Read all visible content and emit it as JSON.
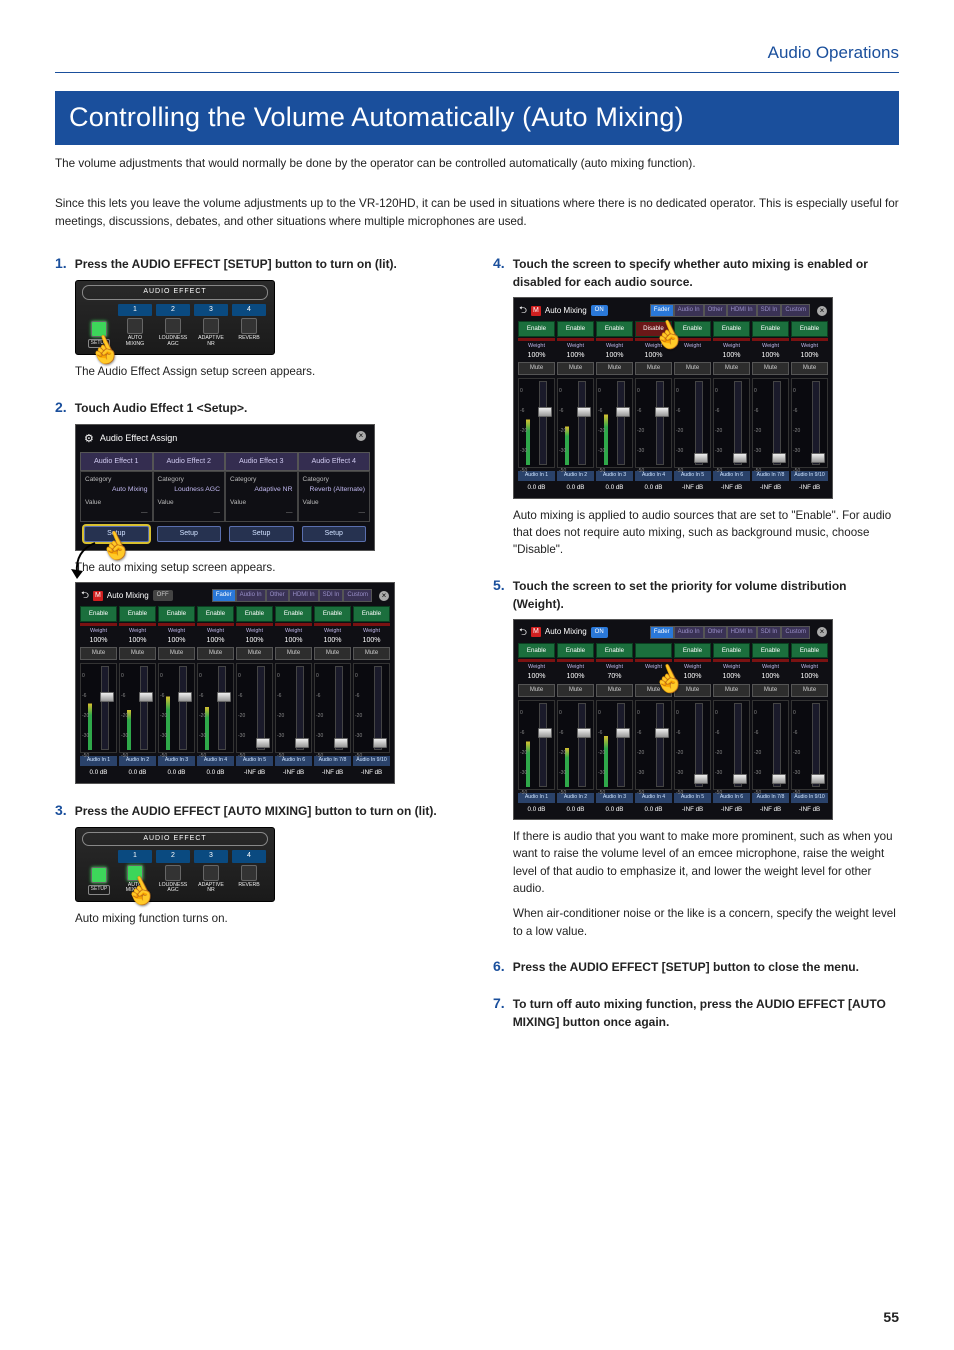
{
  "page": {
    "section_header": "Audio Operations",
    "title": "Controlling the Volume Automatically (Auto Mixing)",
    "number": "55"
  },
  "intro_p1": "The volume adjustments that would normally be done by the operator can be controlled automatically (auto mixing function).",
  "intro_p2": "Since this lets you leave the volume adjustments up to the VR-120HD, it can be used in situations where there is no dedicated operator. This is especially useful for meetings, discussions, debates, and other situations where multiple microphones are used.",
  "steps": {
    "s1": {
      "num": "1.",
      "text": "Press the AUDIO EFFECT [SETUP] button to turn on (lit).",
      "after": "The Audio Effect Assign setup screen appears."
    },
    "s2": {
      "num": "2.",
      "text": "Touch Audio Effect 1 <Setup>.",
      "after": "The auto mixing setup screen appears."
    },
    "s3": {
      "num": "3.",
      "text": "Press the AUDIO EFFECT [AUTO MIXING] button to turn on (lit).",
      "after": "Auto mixing function turns on."
    },
    "s4": {
      "num": "4.",
      "text": "Touch the screen to specify whether auto mixing is enabled or disabled for each audio source.",
      "after": "Auto mixing is applied to audio sources that are set to \"Enable\". For audio that does not require auto mixing, such as background music, choose \"Disable\"."
    },
    "s5": {
      "num": "5.",
      "text": "Touch the screen to set the priority for volume distribution (Weight).",
      "after1": "If there is audio that you want to make more prominent, such as when you want to raise the volume level of an emcee microphone, raise the weight level of that audio to emphasize it, and lower the weight level for other audio.",
      "after2": "When air-conditioner noise or the like is a concern, specify the weight level to a low value."
    },
    "s6": {
      "num": "6.",
      "text": "Press the AUDIO EFFECT [SETUP] button to close the menu."
    },
    "s7": {
      "num": "7.",
      "text": "To turn off auto mixing function, press the AUDIO EFFECT [AUTO MIXING] button once again."
    }
  },
  "hw_panel": {
    "title": "AUDIO EFFECT",
    "setup": "SETUP",
    "buttons": [
      {
        "num": "1",
        "label": "AUTO\nMIXING"
      },
      {
        "num": "2",
        "label": "LOUDNESS\nAGC"
      },
      {
        "num": "3",
        "label": "ADAPTIVE\nNR"
      },
      {
        "num": "4",
        "label": "REVERB"
      }
    ]
  },
  "fx_assign": {
    "title": "Audio Effect Assign",
    "tabs": [
      "Audio Effect 1",
      "Audio Effect 2",
      "Audio Effect 3",
      "Audio Effect 4"
    ],
    "category_label": "Category",
    "value_label": "Value",
    "cats": [
      "Auto Mixing",
      "Loudness AGC",
      "Adaptive NR",
      "Reverb (Alternate)"
    ],
    "setup": "Setup"
  },
  "am": {
    "title": "Auto Mixing",
    "on": "ON",
    "off": "OFF",
    "tabs": [
      "Fader",
      "Audio In",
      "Other",
      "HDMI In",
      "SDI In",
      "Custom"
    ],
    "enable": "Enable",
    "disable": "Disable",
    "weight": "Weight",
    "mute": "Mute",
    "scale": [
      "0",
      "-6",
      "-20",
      "-30",
      "-50"
    ],
    "ch_a": [
      {
        "en": "Enable",
        "w": "100%",
        "name": "Audio In 1",
        "db": "0.0 dB",
        "bar": 70,
        "fpos": 30
      },
      {
        "en": "Enable",
        "w": "100%",
        "name": "Audio In 2",
        "db": "0.0 dB",
        "bar": 60,
        "fpos": 30
      },
      {
        "en": "Enable",
        "w": "100%",
        "name": "Audio In 3",
        "db": "0.0 dB",
        "bar": 80,
        "fpos": 30
      },
      {
        "en": "Enable",
        "w": "100%",
        "name": "Audio In 4",
        "db": "0.0 dB",
        "bar": 65,
        "fpos": 30
      },
      {
        "en": "Enable",
        "w": "100%",
        "name": "Audio In 5",
        "db": "-INF dB",
        "bar": 0,
        "fpos": 86
      },
      {
        "en": "Enable",
        "w": "100%",
        "name": "Audio In 6",
        "db": "-INF dB",
        "bar": 0,
        "fpos": 86
      },
      {
        "en": "Enable",
        "w": "100%",
        "name": "Audio In 7/8",
        "db": "-INF dB",
        "bar": 0,
        "fpos": 86
      },
      {
        "en": "Enable",
        "w": "100%",
        "name": "Audio In 9/10",
        "db": "-INF dB",
        "bar": 0,
        "fpos": 86
      }
    ],
    "ch_b": [
      {
        "en": "Enable",
        "w": "100%",
        "name": "Audio In 1",
        "db": "0.0 dB",
        "bar": 68,
        "fpos": 30
      },
      {
        "en": "Enable",
        "w": "100%",
        "name": "Audio In 2",
        "db": "0.0 dB",
        "bar": 58,
        "fpos": 30
      },
      {
        "en": "Enable",
        "w": "100%",
        "name": "Audio In 3",
        "db": "0.0 dB",
        "bar": 76,
        "fpos": 30
      },
      {
        "en": "Disable",
        "w": "100%",
        "name": "Audio In 4",
        "db": "0.0 dB",
        "bar": 0,
        "fpos": 30
      },
      {
        "en": "Enable",
        "w": "",
        "name": "Audio In 5",
        "db": "-INF dB",
        "bar": 0,
        "fpos": 86
      },
      {
        "en": "Enable",
        "w": "100%",
        "name": "Audio In 6",
        "db": "-INF dB",
        "bar": 0,
        "fpos": 86
      },
      {
        "en": "Enable",
        "w": "100%",
        "name": "Audio In 7/8",
        "db": "-INF dB",
        "bar": 0,
        "fpos": 86
      },
      {
        "en": "Enable",
        "w": "100%",
        "name": "Audio In 9/10",
        "db": "-INF dB",
        "bar": 0,
        "fpos": 86
      }
    ],
    "ch_c": [
      {
        "en": "Enable",
        "w": "100%",
        "name": "Audio In 1",
        "db": "0.0 dB",
        "bar": 68,
        "fpos": 30
      },
      {
        "en": "Enable",
        "w": "100%",
        "name": "Audio In 2",
        "db": "0.0 dB",
        "bar": 58,
        "fpos": 30
      },
      {
        "en": "Enable",
        "w": "70%",
        "name": "Audio In 3",
        "db": "0.0 dB",
        "bar": 76,
        "fpos": 30
      },
      {
        "en": "",
        "w": "",
        "name": "Audio In 4",
        "db": "0.0 dB",
        "bar": 0,
        "fpos": 30
      },
      {
        "en": "Enable",
        "w": "100%",
        "name": "Audio In 5",
        "db": "-INF dB",
        "bar": 0,
        "fpos": 86
      },
      {
        "en": "Enable",
        "w": "100%",
        "name": "Audio In 6",
        "db": "-INF dB",
        "bar": 0,
        "fpos": 86
      },
      {
        "en": "Enable",
        "w": "100%",
        "name": "Audio In 7/8",
        "db": "-INF dB",
        "bar": 0,
        "fpos": 86
      },
      {
        "en": "Enable",
        "w": "100%",
        "name": "Audio In 9/10",
        "db": "-INF dB",
        "bar": 0,
        "fpos": 86
      }
    ]
  },
  "colors": {
    "brand": "#1a4f9c",
    "green": "#1b6f3d",
    "red": "#6a1818",
    "panel_bg": "#0f0f14",
    "tab_blue": "#2a78d8"
  }
}
